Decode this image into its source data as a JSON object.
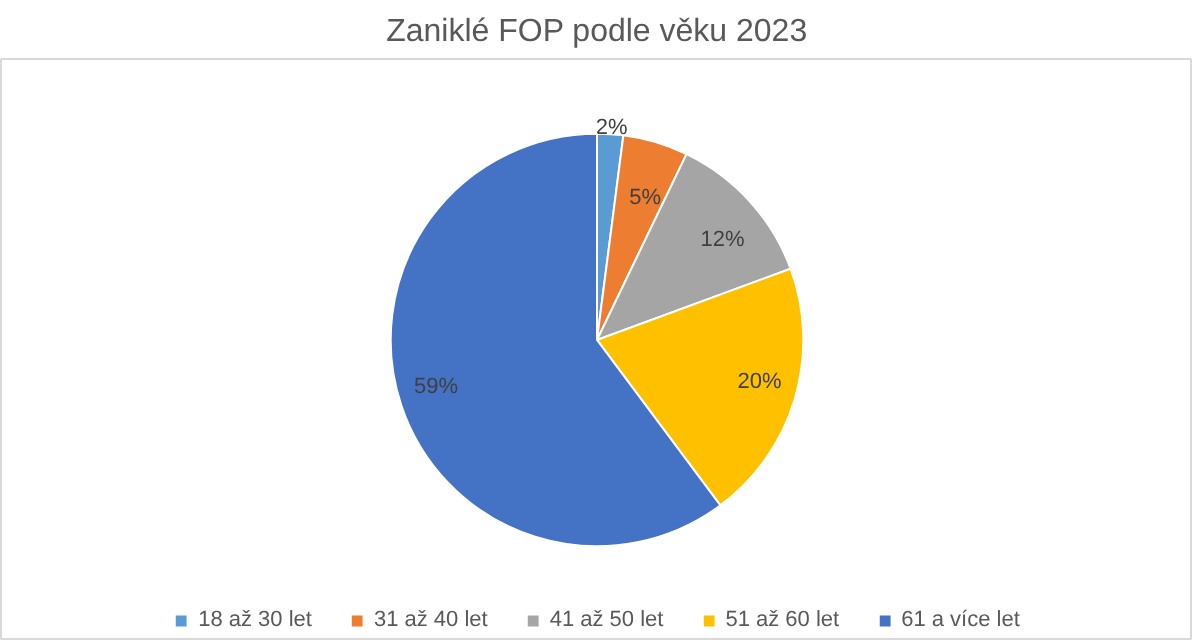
{
  "chart_data": {
    "type": "pie",
    "title": "Zaniklé FOP podle věku 2023",
    "categories": [
      "18 až 30 let",
      "31 až 40 let",
      "41 až 50 let",
      "51 až 60 let",
      "61 a více let"
    ],
    "values": [
      2,
      5,
      12,
      20,
      59
    ],
    "colors": [
      "#5b9bd5",
      "#ed7d31",
      "#a5a5a5",
      "#ffc000",
      "#4472c4"
    ],
    "value_labels": [
      "2%",
      "5%",
      "12%",
      "20%",
      "59%"
    ],
    "legend": "bottom"
  }
}
